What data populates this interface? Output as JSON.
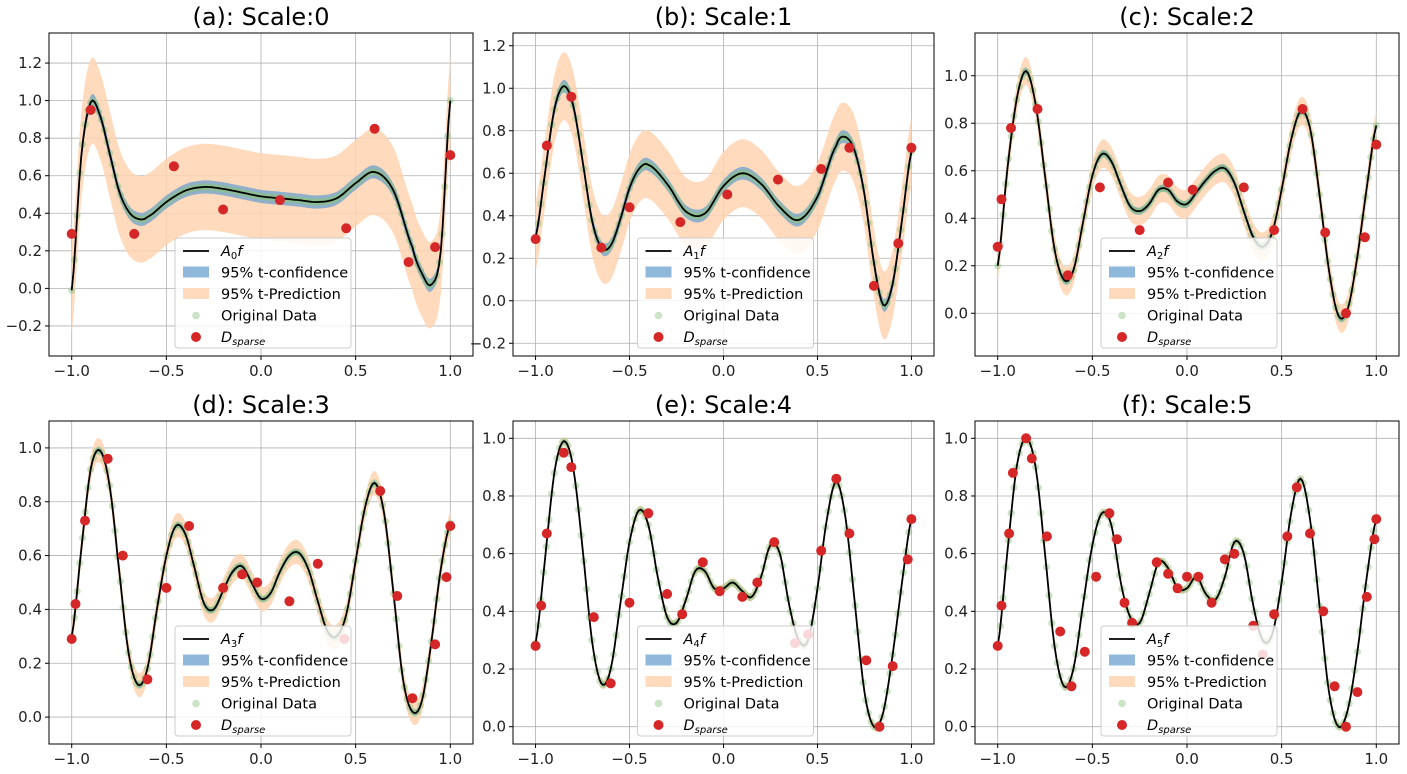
{
  "figure": {
    "legend_labels": {
      "confidence": "95% t-confidence",
      "prediction": "95% t-Prediction",
      "original": "Original Data"
    },
    "colors": {
      "mean_line": "#000000",
      "confidence_band": "#6aa0cf",
      "prediction_band": "#ffd4b0",
      "original_points": "#8cc47f",
      "sparse_points": "#d62728",
      "grid": "#b0b0b0"
    }
  },
  "chart_data": [
    {
      "type": "line",
      "title": "(a): Scale:0",
      "scale": 0,
      "xlim": [
        -1.12,
        1.12
      ],
      "ylim": [
        -0.36,
        1.36
      ],
      "xticks": [
        -1.0,
        -0.5,
        0.0,
        0.5,
        1.0
      ],
      "xtick_labels": [
        "−1.0",
        "−0.5",
        "0.0",
        "0.5",
        "1.0"
      ],
      "yticks": [
        -0.2,
        0.0,
        0.2,
        0.4,
        0.6,
        0.8,
        1.0,
        1.2
      ],
      "ytick_labels": [
        "−0.2",
        "0.0",
        "0.2",
        "0.4",
        "0.6",
        "0.8",
        "1.0",
        "1.2"
      ],
      "legend": [
        "A0f",
        "95% t-confidence",
        "95% t-Prediction",
        "Original Data",
        "D_sparse"
      ],
      "legend_position": "lower center",
      "grid": true,
      "band_halfwidth": {
        "confidence": 0.035,
        "prediction": 0.23
      },
      "mean_curve": {
        "x": [
          -1.0,
          -0.95,
          -0.9,
          -0.85,
          -0.8,
          -0.75,
          -0.7,
          -0.65,
          -0.6,
          -0.5,
          -0.4,
          -0.3,
          -0.2,
          -0.1,
          0.0,
          0.1,
          0.2,
          0.3,
          0.4,
          0.5,
          0.6,
          0.7,
          0.8,
          0.85,
          0.9,
          0.95,
          1.0
        ],
        "y": [
          -0.01,
          0.7,
          0.99,
          0.92,
          0.72,
          0.52,
          0.41,
          0.37,
          0.38,
          0.46,
          0.52,
          0.54,
          0.53,
          0.51,
          0.49,
          0.48,
          0.47,
          0.46,
          0.48,
          0.56,
          0.62,
          0.52,
          0.22,
          0.08,
          0.02,
          0.2,
          1.0
        ]
      },
      "sparse_points": {
        "x": [
          -1.0,
          -0.9,
          -0.67,
          -0.46,
          -0.2,
          0.1,
          0.45,
          0.6,
          0.78,
          0.92,
          1.0
        ],
        "y": [
          0.29,
          0.95,
          0.29,
          0.65,
          0.42,
          0.47,
          0.32,
          0.85,
          0.14,
          0.22,
          0.71
        ]
      }
    },
    {
      "type": "line",
      "title": "(b): Scale:1",
      "scale": 1,
      "xlim": [
        -1.12,
        1.12
      ],
      "ylim": [
        -0.26,
        1.26
      ],
      "xticks": [
        -1.0,
        -0.5,
        0.0,
        0.5,
        1.0
      ],
      "xtick_labels": [
        "−1.0",
        "−0.5",
        "0.0",
        "0.5",
        "1.0"
      ],
      "yticks": [
        -0.2,
        0.0,
        0.2,
        0.4,
        0.6,
        0.8,
        1.0,
        1.2
      ],
      "ytick_labels": [
        "−0.2",
        "0.0",
        "0.2",
        "0.4",
        "0.6",
        "0.8",
        "1.0",
        "1.2"
      ],
      "legend": [
        "A1f",
        "95% t-confidence",
        "95% t-Prediction",
        "Original Data",
        "D_sparse"
      ],
      "legend_position": "lower center",
      "grid": true,
      "band_halfwidth": {
        "confidence": 0.03,
        "prediction": 0.16
      },
      "mean_curve": {
        "x": [
          -1.0,
          -0.95,
          -0.9,
          -0.85,
          -0.8,
          -0.75,
          -0.7,
          -0.65,
          -0.6,
          -0.55,
          -0.5,
          -0.45,
          -0.4,
          -0.3,
          -0.2,
          -0.1,
          0.0,
          0.1,
          0.2,
          0.3,
          0.4,
          0.5,
          0.6,
          0.65,
          0.7,
          0.75,
          0.8,
          0.85,
          0.9,
          0.95,
          1.0
        ],
        "y": [
          0.3,
          0.6,
          0.9,
          1.01,
          0.92,
          0.66,
          0.38,
          0.25,
          0.26,
          0.38,
          0.53,
          0.62,
          0.64,
          0.55,
          0.42,
          0.41,
          0.54,
          0.6,
          0.55,
          0.44,
          0.38,
          0.49,
          0.73,
          0.77,
          0.7,
          0.5,
          0.18,
          -0.02,
          0.08,
          0.38,
          0.7
        ]
      },
      "sparse_points": {
        "x": [
          -1.0,
          -0.94,
          -0.81,
          -0.65,
          -0.5,
          -0.23,
          0.02,
          0.29,
          0.52,
          0.67,
          0.8,
          0.93,
          1.0
        ],
        "y": [
          0.29,
          0.73,
          0.96,
          0.25,
          0.44,
          0.37,
          0.5,
          0.57,
          0.62,
          0.72,
          0.07,
          0.27,
          0.72
        ]
      }
    },
    {
      "type": "line",
      "title": "(c): Scale:2",
      "scale": 2,
      "xlim": [
        -1.12,
        1.12
      ],
      "ylim": [
        -0.18,
        1.18
      ],
      "xticks": [
        -1.0,
        -0.5,
        0.0,
        0.5,
        1.0
      ],
      "xtick_labels": [
        "−1.0",
        "−0.5",
        "0.0",
        "0.5",
        "1.0"
      ],
      "yticks": [
        0.0,
        0.2,
        0.4,
        0.6,
        0.8,
        1.0
      ],
      "ytick_labels": [
        "0.0",
        "0.2",
        "0.4",
        "0.6",
        "0.8",
        "1.0"
      ],
      "legend": [
        "A2f",
        "95% t-confidence",
        "95% t-Prediction",
        "Original Data",
        "D_sparse"
      ],
      "legend_position": "lower center",
      "grid": true,
      "band_halfwidth": {
        "confidence": 0.015,
        "prediction": 0.06
      },
      "mean_curve": {
        "x": [
          -1.0,
          -0.95,
          -0.9,
          -0.85,
          -0.8,
          -0.75,
          -0.7,
          -0.65,
          -0.6,
          -0.55,
          -0.5,
          -0.45,
          -0.4,
          -0.35,
          -0.3,
          -0.25,
          -0.2,
          -0.15,
          -0.1,
          -0.05,
          0.0,
          0.05,
          0.1,
          0.15,
          0.2,
          0.25,
          0.3,
          0.35,
          0.4,
          0.45,
          0.5,
          0.55,
          0.6,
          0.65,
          0.7,
          0.75,
          0.8,
          0.85,
          0.9,
          0.95,
          1.0
        ],
        "y": [
          0.2,
          0.6,
          0.9,
          1.02,
          0.88,
          0.58,
          0.27,
          0.14,
          0.18,
          0.38,
          0.58,
          0.67,
          0.64,
          0.54,
          0.45,
          0.43,
          0.46,
          0.52,
          0.52,
          0.47,
          0.46,
          0.51,
          0.56,
          0.6,
          0.61,
          0.55,
          0.43,
          0.32,
          0.28,
          0.34,
          0.52,
          0.73,
          0.85,
          0.78,
          0.5,
          0.18,
          -0.01,
          0.02,
          0.24,
          0.53,
          0.79
        ]
      },
      "sparse_points": {
        "x": [
          -1.0,
          -0.98,
          -0.93,
          -0.79,
          -0.63,
          -0.46,
          -0.25,
          -0.1,
          0.03,
          0.3,
          0.46,
          0.61,
          0.73,
          0.84,
          0.94,
          1.0
        ],
        "y": [
          0.28,
          0.48,
          0.78,
          0.86,
          0.16,
          0.53,
          0.35,
          0.55,
          0.52,
          0.53,
          0.35,
          0.86,
          0.34,
          0.0,
          0.32,
          0.71
        ]
      }
    },
    {
      "type": "line",
      "title": "(d): Scale:3",
      "scale": 3,
      "xlim": [
        -1.12,
        1.12
      ],
      "ylim": [
        -0.1,
        1.1
      ],
      "xticks": [
        -1.0,
        -0.5,
        0.0,
        0.5,
        1.0
      ],
      "xtick_labels": [
        "−1.0",
        "−0.5",
        "0.0",
        "0.5",
        "1.0"
      ],
      "yticks": [
        0.0,
        0.2,
        0.4,
        0.6,
        0.8,
        1.0
      ],
      "ytick_labels": [
        "0.0",
        "0.2",
        "0.4",
        "0.6",
        "0.8",
        "1.0"
      ],
      "legend": [
        "A3f",
        "95% t-confidence",
        "95% t-Prediction",
        "Original Data",
        "D_sparse"
      ],
      "legend_position": "lower center",
      "grid": true,
      "band_halfwidth": {
        "confidence": 0.01,
        "prediction": 0.045
      },
      "mean_curve": {
        "x": [
          -1.0,
          -0.95,
          -0.9,
          -0.85,
          -0.8,
          -0.75,
          -0.7,
          -0.65,
          -0.6,
          -0.55,
          -0.5,
          -0.45,
          -0.4,
          -0.35,
          -0.3,
          -0.25,
          -0.2,
          -0.15,
          -0.1,
          -0.05,
          0.0,
          0.05,
          0.1,
          0.15,
          0.2,
          0.25,
          0.3,
          0.35,
          0.4,
          0.45,
          0.5,
          0.55,
          0.6,
          0.65,
          0.7,
          0.75,
          0.8,
          0.85,
          0.9,
          0.95,
          1.0
        ],
        "y": [
          0.3,
          0.62,
          0.92,
          0.99,
          0.86,
          0.55,
          0.24,
          0.12,
          0.18,
          0.4,
          0.6,
          0.71,
          0.68,
          0.55,
          0.42,
          0.4,
          0.47,
          0.54,
          0.56,
          0.5,
          0.44,
          0.46,
          0.54,
          0.6,
          0.61,
          0.55,
          0.43,
          0.32,
          0.3,
          0.38,
          0.58,
          0.78,
          0.87,
          0.76,
          0.46,
          0.14,
          0.02,
          0.06,
          0.28,
          0.55,
          0.72
        ]
      },
      "sparse_points": {
        "x": [
          -1.0,
          -0.98,
          -0.93,
          -0.81,
          -0.73,
          -0.6,
          -0.5,
          -0.38,
          -0.2,
          -0.1,
          -0.02,
          0.15,
          0.3,
          0.44,
          0.63,
          0.72,
          0.8,
          0.92,
          0.98,
          1.0
        ],
        "y": [
          0.29,
          0.42,
          0.73,
          0.96,
          0.6,
          0.14,
          0.48,
          0.71,
          0.48,
          0.53,
          0.5,
          0.43,
          0.57,
          0.29,
          0.84,
          0.45,
          0.07,
          0.27,
          0.52,
          0.71
        ]
      }
    },
    {
      "type": "line",
      "title": "(e): Scale:4",
      "scale": 4,
      "xlim": [
        -1.12,
        1.12
      ],
      "ylim": [
        -0.06,
        1.06
      ],
      "xticks": [
        -1.0,
        -0.5,
        0.0,
        0.5,
        1.0
      ],
      "xtick_labels": [
        "−1.0",
        "−0.5",
        "0.0",
        "0.5",
        "1.0"
      ],
      "yticks": [
        0.0,
        0.2,
        0.4,
        0.6,
        0.8,
        1.0
      ],
      "ytick_labels": [
        "0.0",
        "0.2",
        "0.4",
        "0.6",
        "0.8",
        "1.0"
      ],
      "legend": [
        "A4f",
        "95% t-confidence",
        "95% t-Prediction",
        "Original Data",
        "D_sparse"
      ],
      "legend_position": "lower center",
      "grid": true,
      "band_halfwidth": {
        "confidence": 0.006,
        "prediction": 0.015
      },
      "mean_curve": {
        "x": [
          -1.0,
          -0.95,
          -0.9,
          -0.85,
          -0.8,
          -0.75,
          -0.7,
          -0.65,
          -0.6,
          -0.55,
          -0.5,
          -0.45,
          -0.4,
          -0.35,
          -0.3,
          -0.25,
          -0.2,
          -0.15,
          -0.1,
          -0.05,
          0.0,
          0.05,
          0.1,
          0.15,
          0.2,
          0.25,
          0.3,
          0.35,
          0.4,
          0.45,
          0.5,
          0.55,
          0.6,
          0.65,
          0.7,
          0.75,
          0.8,
          0.85,
          0.9,
          0.95,
          1.0
        ],
        "y": [
          0.29,
          0.58,
          0.88,
          0.99,
          0.9,
          0.62,
          0.3,
          0.15,
          0.2,
          0.42,
          0.64,
          0.75,
          0.7,
          0.52,
          0.38,
          0.36,
          0.44,
          0.54,
          0.54,
          0.48,
          0.48,
          0.5,
          0.47,
          0.45,
          0.52,
          0.63,
          0.6,
          0.42,
          0.3,
          0.3,
          0.48,
          0.72,
          0.85,
          0.72,
          0.42,
          0.12,
          0.0,
          0.05,
          0.25,
          0.5,
          0.72
        ]
      },
      "sparse_points": {
        "x": [
          -1.0,
          -0.97,
          -0.94,
          -0.85,
          -0.81,
          -0.69,
          -0.6,
          -0.5,
          -0.4,
          -0.3,
          -0.22,
          -0.11,
          -0.02,
          0.1,
          0.18,
          0.27,
          0.38,
          0.45,
          0.52,
          0.6,
          0.67,
          0.76,
          0.83,
          0.9,
          0.98,
          1.0
        ],
        "y": [
          0.28,
          0.42,
          0.67,
          0.95,
          0.9,
          0.38,
          0.15,
          0.43,
          0.74,
          0.46,
          0.39,
          0.57,
          0.47,
          0.45,
          0.5,
          0.64,
          0.29,
          0.32,
          0.61,
          0.86,
          0.67,
          0.23,
          0.0,
          0.21,
          0.58,
          0.72
        ]
      }
    },
    {
      "type": "line",
      "title": "(f): Scale:5",
      "scale": 5,
      "xlim": [
        -1.12,
        1.12
      ],
      "ylim": [
        -0.06,
        1.06
      ],
      "xticks": [
        -1.0,
        -0.5,
        0.0,
        0.5,
        1.0
      ],
      "xtick_labels": [
        "−1.0",
        "−0.5",
        "0.0",
        "0.5",
        "1.0"
      ],
      "yticks": [
        0.0,
        0.2,
        0.4,
        0.6,
        0.8,
        1.0
      ],
      "ytick_labels": [
        "0.0",
        "0.2",
        "0.4",
        "0.6",
        "0.8",
        "1.0"
      ],
      "legend": [
        "A5f",
        "95% t-confidence",
        "95% t-Prediction",
        "Original Data",
        "D_sparse"
      ],
      "legend_position": "lower center",
      "grid": true,
      "band_halfwidth": {
        "confidence": 0.005,
        "prediction": 0.012
      },
      "mean_curve": {
        "x": [
          -1.0,
          -0.95,
          -0.9,
          -0.85,
          -0.8,
          -0.75,
          -0.7,
          -0.65,
          -0.6,
          -0.55,
          -0.5,
          -0.45,
          -0.4,
          -0.35,
          -0.3,
          -0.25,
          -0.2,
          -0.15,
          -0.1,
          -0.05,
          0.0,
          0.05,
          0.1,
          0.15,
          0.2,
          0.25,
          0.3,
          0.35,
          0.4,
          0.45,
          0.5,
          0.55,
          0.6,
          0.65,
          0.7,
          0.75,
          0.8,
          0.85,
          0.9,
          0.95,
          1.0
        ],
        "y": [
          0.28,
          0.6,
          0.9,
          1.0,
          0.9,
          0.6,
          0.28,
          0.14,
          0.2,
          0.42,
          0.63,
          0.74,
          0.7,
          0.5,
          0.38,
          0.36,
          0.46,
          0.57,
          0.55,
          0.48,
          0.48,
          0.52,
          0.46,
          0.44,
          0.52,
          0.64,
          0.6,
          0.42,
          0.3,
          0.32,
          0.5,
          0.74,
          0.86,
          0.72,
          0.42,
          0.12,
          0.0,
          0.06,
          0.26,
          0.52,
          0.72
        ]
      },
      "sparse_points": {
        "x": [
          -1.0,
          -0.98,
          -0.94,
          -0.92,
          -0.85,
          -0.82,
          -0.74,
          -0.67,
          -0.61,
          -0.54,
          -0.48,
          -0.41,
          -0.37,
          -0.33,
          -0.29,
          -0.16,
          -0.1,
          -0.05,
          0.0,
          0.06,
          0.13,
          0.2,
          0.25,
          0.35,
          0.4,
          0.46,
          0.53,
          0.58,
          0.65,
          0.72,
          0.78,
          0.84,
          0.9,
          0.95,
          0.99,
          1.0
        ],
        "y": [
          0.28,
          0.42,
          0.67,
          0.88,
          1.0,
          0.93,
          0.66,
          0.33,
          0.14,
          0.26,
          0.52,
          0.74,
          0.65,
          0.43,
          0.36,
          0.57,
          0.53,
          0.48,
          0.52,
          0.52,
          0.43,
          0.58,
          0.6,
          0.35,
          0.25,
          0.39,
          0.66,
          0.83,
          0.67,
          0.4,
          0.14,
          0.0,
          0.12,
          0.45,
          0.65,
          0.72
        ]
      }
    }
  ]
}
